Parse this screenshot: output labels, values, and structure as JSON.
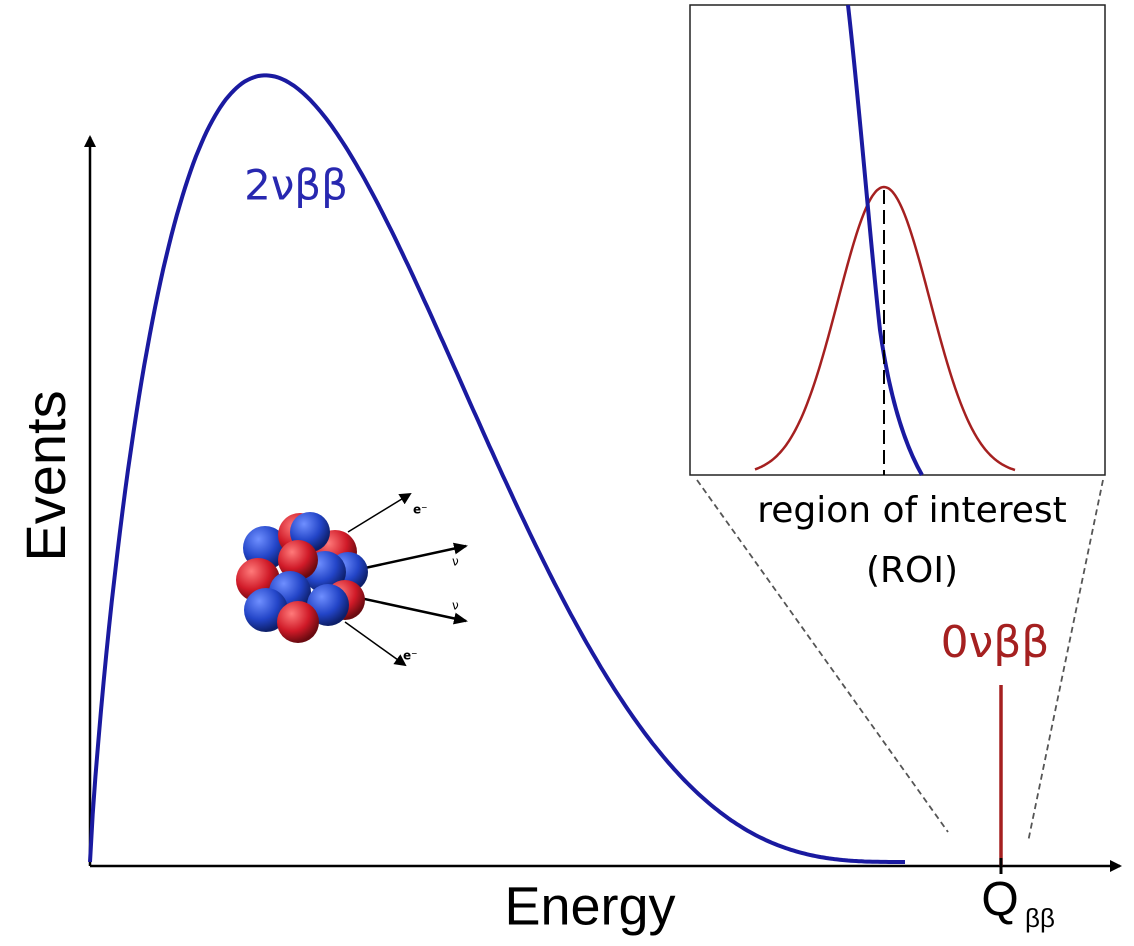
{
  "axes": {
    "y_label": "Events",
    "x_label": "Energy",
    "x_marker": {
      "symbol": "Q",
      "subscript": "ββ"
    }
  },
  "curves": {
    "two_neutrino": "2νββ",
    "zero_neutrino": "0νββ"
  },
  "inset": {
    "label_line1": "region of interest",
    "label_line2": "(ROI)"
  },
  "nucleus": {
    "particles": [
      "e⁻",
      "ν",
      "ν",
      "e⁻"
    ]
  }
}
